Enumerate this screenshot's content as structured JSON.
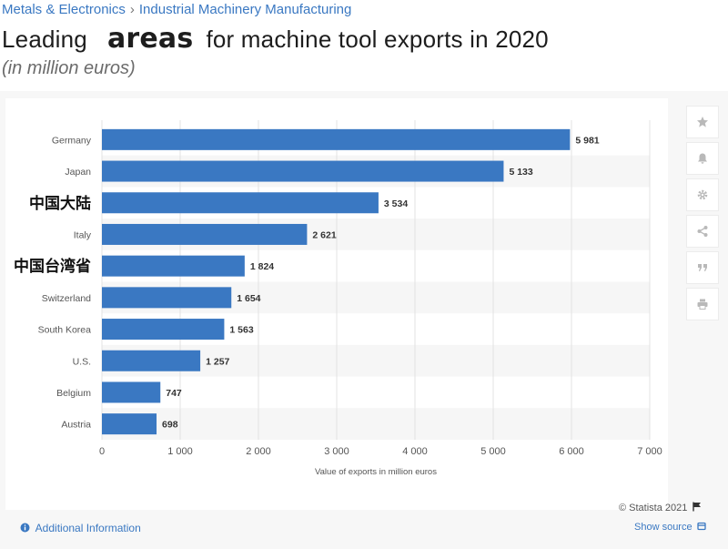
{
  "breadcrumb": {
    "items": [
      "Metals & Electronics",
      "Industrial Machinery Manufacturing"
    ],
    "separator": "›"
  },
  "title": {
    "part1": "Leading",
    "part2": "areas",
    "part3": "for machine tool exports in 2020"
  },
  "subtitle": "(in million euros)",
  "tools": [
    "star-icon",
    "bell-icon",
    "gear-icon",
    "share-icon",
    "quote-icon",
    "print-icon"
  ],
  "footer": {
    "additional_info": "Additional Information",
    "copyright": "© Statista 2021",
    "show_source": "Show source"
  },
  "colors": {
    "bar": "#3a78c2",
    "link": "#3a78c2",
    "grid": "#e3e3e3"
  },
  "chart_data": {
    "type": "bar",
    "orientation": "horizontal",
    "categories": [
      "Germany",
      "Japan",
      "中国大陆",
      "Italy",
      "中国台湾省",
      "Switzerland",
      "South Korea",
      "U.S.",
      "Belgium",
      "Austria"
    ],
    "values": [
      5981,
      5133,
      3534,
      2621,
      1824,
      1654,
      1563,
      1257,
      747,
      698
    ],
    "value_labels": [
      "5 981",
      "5 133",
      "3 534",
      "2 621",
      "1 824",
      "1 654",
      "1 563",
      "1 257",
      "747",
      "698"
    ],
    "xticks": [
      0,
      1000,
      2000,
      3000,
      4000,
      5000,
      6000,
      7000
    ],
    "xtick_labels": [
      "0",
      "1 000",
      "2 000",
      "3 000",
      "4 000",
      "5 000",
      "6 000",
      "7 000"
    ],
    "xlabel": "Value of exports in million euros",
    "xlim": [
      0,
      7000
    ],
    "grid": true
  }
}
